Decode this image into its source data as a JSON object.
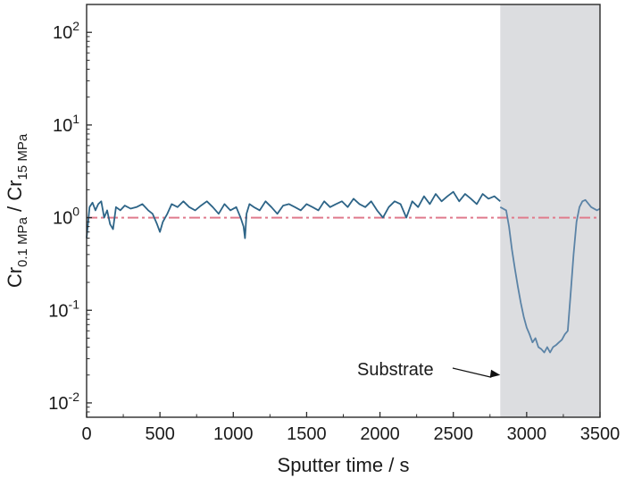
{
  "chart_data": {
    "type": "line",
    "xlabel": "Sputter time / s",
    "ylabel": {
      "num_base": "Cr",
      "num_sub": "0.1 MPa",
      "sep": " / ",
      "den_base": "Cr",
      "den_sub": "15 MPa"
    },
    "xlim": [
      0,
      3500
    ],
    "ylim": [
      0.007,
      200
    ],
    "yscale": "log",
    "x_ticks": [
      0,
      500,
      1000,
      1500,
      2000,
      2500,
      3000,
      3500
    ],
    "x_tick_labels": [
      "0",
      "500",
      "1000",
      "1500",
      "2000",
      "2500",
      "3000",
      "3500"
    ],
    "y_ticks": [
      {
        "value": 0.01,
        "base": "10",
        "exp": "-2"
      },
      {
        "value": 0.1,
        "base": "10",
        "exp": "-1"
      },
      {
        "value": 1,
        "base": "10",
        "exp": "0"
      },
      {
        "value": 10,
        "base": "10",
        "exp": "1"
      },
      {
        "value": 100,
        "base": "10",
        "exp": "2"
      }
    ],
    "grid": false,
    "substrate_region": {
      "x_start": 2820,
      "x_end": 3500,
      "color": "#dcdde0"
    },
    "reference_line": {
      "y": 1.0,
      "style": "dash-dot",
      "color": "#e07b8c"
    },
    "annotation": {
      "text": "Substrate",
      "x": 2820,
      "y": 0.02
    },
    "series": [
      {
        "color": "#2d6487",
        "x": [
          0,
          20,
          40,
          60,
          80,
          100,
          120,
          140,
          160,
          180,
          200,
          230,
          260,
          300,
          340,
          380,
          420,
          450,
          480,
          500,
          520,
          550,
          580,
          620,
          660,
          700,
          740,
          780,
          820,
          860,
          900,
          940,
          980,
          1020,
          1050,
          1070,
          1080,
          1090,
          1110,
          1140,
          1180,
          1220,
          1260,
          1300,
          1340,
          1380,
          1420,
          1460,
          1500,
          1540,
          1580,
          1620,
          1660,
          1700,
          1740,
          1780,
          1820,
          1860,
          1900,
          1940,
          1980,
          2020,
          2060,
          2100,
          2140,
          2180,
          2220,
          2260,
          2300,
          2340,
          2380,
          2420,
          2460,
          2500,
          2540,
          2580,
          2620,
          2660,
          2700,
          2740,
          2780,
          2820
        ],
        "values": [
          0.6,
          1.3,
          1.45,
          1.2,
          1.4,
          1.5,
          1.0,
          1.2,
          0.85,
          0.75,
          1.3,
          1.2,
          1.35,
          1.25,
          1.3,
          1.4,
          1.2,
          1.1,
          0.85,
          0.7,
          0.9,
          1.1,
          1.4,
          1.3,
          1.5,
          1.3,
          1.2,
          1.35,
          1.5,
          1.3,
          1.1,
          1.4,
          1.2,
          1.3,
          1.0,
          0.8,
          0.6,
          1.1,
          1.4,
          1.3,
          1.2,
          1.5,
          1.3,
          1.1,
          1.35,
          1.4,
          1.3,
          1.2,
          1.4,
          1.3,
          1.2,
          1.5,
          1.3,
          1.4,
          1.5,
          1.3,
          1.6,
          1.4,
          1.3,
          1.5,
          1.2,
          1.0,
          1.3,
          1.5,
          1.4,
          1.0,
          1.5,
          1.3,
          1.7,
          1.4,
          1.8,
          1.5,
          1.7,
          1.9,
          1.5,
          1.8,
          1.6,
          1.4,
          1.8,
          1.6,
          1.7,
          1.5
        ]
      },
      {
        "color": "#5b83a6",
        "x": [
          2820,
          2860,
          2880,
          2900,
          2920,
          2940,
          2960,
          2980,
          3000,
          3020,
          3040,
          3060,
          3080,
          3100,
          3120,
          3140,
          3160,
          3180,
          3200,
          3220,
          3240,
          3260,
          3280,
          3300,
          3320,
          3340,
          3360,
          3380,
          3400,
          3440,
          3480,
          3500
        ],
        "values": [
          1.3,
          1.2,
          0.8,
          0.45,
          0.28,
          0.18,
          0.12,
          0.085,
          0.065,
          0.055,
          0.045,
          0.05,
          0.04,
          0.038,
          0.035,
          0.04,
          0.035,
          0.04,
          0.042,
          0.045,
          0.048,
          0.055,
          0.06,
          0.15,
          0.4,
          0.9,
          1.3,
          1.5,
          1.55,
          1.3,
          1.2,
          1.25
        ]
      }
    ]
  }
}
